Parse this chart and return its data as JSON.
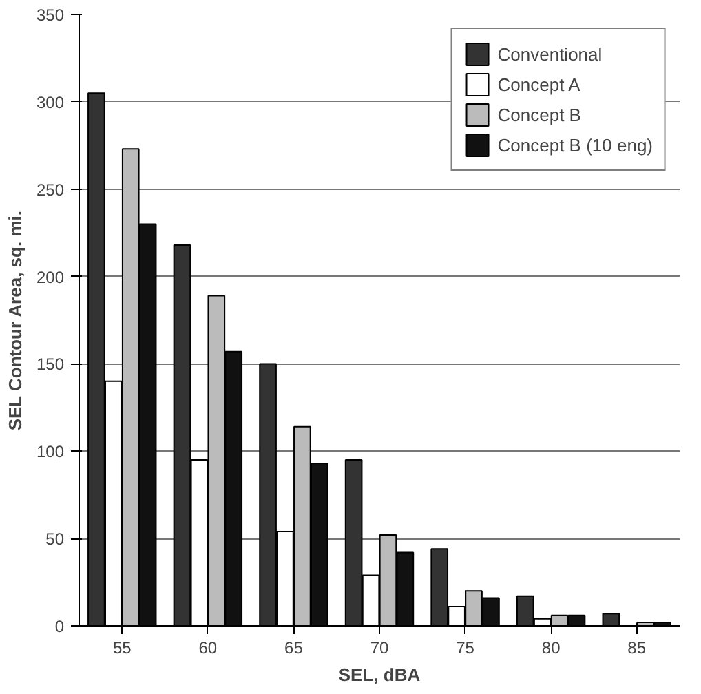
{
  "chart_data": {
    "type": "bar",
    "xlabel": "SEL, dBA",
    "ylabel": "SEL Contour Area, sq. mi.",
    "categories": [
      "55",
      "60",
      "65",
      "70",
      "75",
      "80",
      "85"
    ],
    "series": [
      {
        "name": "Conventional",
        "color": "#333333",
        "values": [
          305,
          218,
          150,
          95,
          44,
          17,
          7
        ]
      },
      {
        "name": "Concept A",
        "color": "#ffffff",
        "values": [
          140,
          95,
          54,
          29,
          11,
          4,
          null
        ]
      },
      {
        "name": "Concept B",
        "color": "#bbbbbb",
        "values": [
          273,
          189,
          114,
          52,
          20,
          6,
          2
        ]
      },
      {
        "name": "Concept B (10 eng)",
        "color": "#111111",
        "values": [
          230,
          157,
          93,
          42,
          16,
          6,
          2
        ]
      }
    ],
    "ylim": [
      0,
      350
    ],
    "yticks": [
      0,
      50,
      100,
      150,
      200,
      250,
      300,
      350
    ],
    "grid": "y",
    "legend": "top right"
  }
}
